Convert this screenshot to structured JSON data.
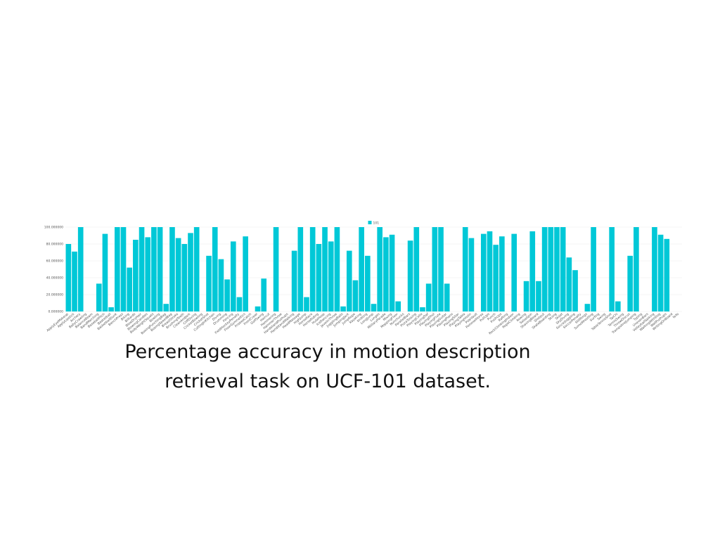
{
  "chart_data": {
    "type": "bar",
    "caption": "Percentage accuracy in motion description retrieval task on UCF-101 dataset.",
    "categories": [
      "ApplyEyeMakeup",
      "ApplyLipstick",
      "Archery",
      "BabyCrawling",
      "BalanceBeam",
      "BandMarching",
      "BaseballPitch",
      "Basketball",
      "BasketballDunk",
      "BenchPress",
      "Biking",
      "Billiards",
      "BlowDryHair",
      "BlowingCandles",
      "BodyWeightSquats",
      "Bowling",
      "BoxingPunchingBag",
      "BoxingSpeedBag",
      "BreastStroke",
      "BrushingTeeth",
      "CleanAndJerk",
      "CliffDiving",
      "CricketBowling",
      "CricketShot",
      "CuttingInKitchen",
      "Diving",
      "Drumming",
      "Fencing",
      "FieldHockeyPenalty",
      "FloorGymnastics",
      "FrisbeeCatch",
      "FrontCrawl",
      "GolfSwing",
      "Haircut",
      "Hammering",
      "HammerThrow",
      "HandstandPushups",
      "HandstandWalking",
      "HeadMassage",
      "HighJump",
      "HorseRace",
      "HorseRiding",
      "HulaHoop",
      "IceDancing",
      "JavelinThrow",
      "JugglingBalls",
      "JumpingJack",
      "JumpRope",
      "Kayaking",
      "Knitting",
      "LongJump",
      "Lunges",
      "MilitaryParade",
      "Mixing",
      "MoppingFloor",
      "Nunchucks",
      "ParallelBars",
      "PizzaTossing",
      "PlayingCello",
      "PlayingDaf",
      "PlayingDhol",
      "PlayingFlute",
      "PlayingGuitar",
      "PlayingPiano",
      "PlayingSitar",
      "PlayingTabla",
      "PlayingViolin",
      "PoleVault",
      "PommelHorse",
      "PullUps",
      "Punch",
      "PushUps",
      "Rafting",
      "RockClimbingIndoor",
      "RopeClimbing",
      "Rowing",
      "SalsaSpin",
      "ShavingBeard",
      "Shotput",
      "SkateBoarding",
      "Skiing",
      "Skijet",
      "SkyDiving",
      "SoccerJuggling",
      "SoccerPenalty",
      "StillRings",
      "SumoWrestling",
      "Surfing",
      "Swing",
      "TableTennisShot",
      "TaiChi",
      "TennisSwing",
      "ThrowDiscus",
      "TrampolineJumping",
      "Typing",
      "UnevenBars",
      "VolleyballSpiking",
      "WalkingWithDog",
      "WallPushups",
      "WritingOnBoard",
      "YoYo"
    ],
    "series": [
      {
        "name": "101",
        "color": "#00c8d7",
        "values": [
          80,
          71,
          100,
          0,
          0,
          33,
          92,
          5,
          100,
          100,
          52,
          85,
          100,
          88,
          100,
          100,
          9,
          100,
          87,
          80,
          93,
          100,
          0,
          66,
          100,
          62,
          38,
          83,
          17,
          89,
          0,
          6,
          39,
          0,
          100,
          0,
          0,
          72,
          100,
          17,
          100,
          80,
          100,
          83,
          100,
          6,
          72,
          37,
          100,
          66,
          9,
          100,
          88,
          91,
          12,
          0,
          84,
          100,
          5,
          33,
          100,
          100,
          33,
          0,
          0,
          100,
          87,
          0,
          92,
          95,
          79,
          89,
          0,
          92,
          0,
          36,
          95,
          36,
          100,
          100,
          100,
          100,
          64,
          49,
          0,
          9,
          100,
          0,
          0,
          100,
          12,
          0,
          66,
          100,
          0,
          0,
          100,
          91,
          86,
          0,
          0
        ]
      }
    ],
    "ylim": [
      0,
      100
    ],
    "yticks": [
      {
        "value": 0,
        "label": "0.000000"
      },
      {
        "value": 20,
        "label": "20.000000"
      },
      {
        "value": 40,
        "label": "40.000000"
      },
      {
        "value": 60,
        "label": "60.000000"
      },
      {
        "value": 80,
        "label": "80.000000"
      },
      {
        "value": 100,
        "label": "100.000000"
      }
    ],
    "grid": true,
    "legend": "top"
  }
}
